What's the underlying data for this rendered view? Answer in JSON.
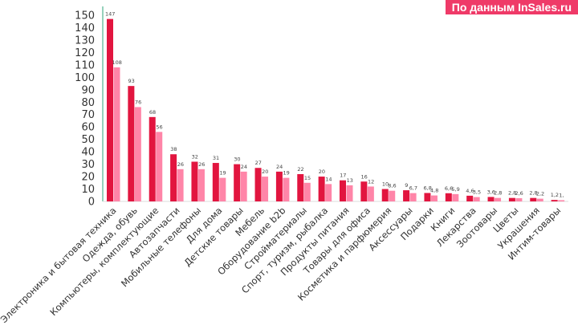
{
  "source_badge": "По данным InSales.ru",
  "colors": {
    "series1": "#e2153f",
    "series2": "#ff85a8",
    "badge": "#ef3a68",
    "axis": "#2ea37a"
  },
  "chart_data": {
    "type": "bar",
    "title": "",
    "xlabel": "",
    "ylabel": "",
    "ylim": [
      0,
      150
    ],
    "yticks": [
      0,
      10,
      20,
      30,
      40,
      50,
      60,
      70,
      80,
      90,
      100,
      110,
      120,
      130,
      140,
      150
    ],
    "grid": false,
    "categories": [
      "Электроника и бытовая техника",
      "Одежда, обувь",
      "Компьютеры, комплектующие",
      "Автозапчасти",
      "Мобильные телефоны",
      "Для дома",
      "Детские товары",
      "Мебель",
      "Оборудование b2b",
      "Стройматериалы",
      "Спорт, туризм, рыбалка",
      "Продукты питания",
      "Товары для офиса",
      "Косметика и парфюмерия",
      "Аксессуары",
      "Подарки",
      "Книги",
      "Лекарства",
      "Зоотовары",
      "Цветы",
      "Украшения",
      "Интим-товары"
    ],
    "series": [
      {
        "values": [
          147,
          93,
          68,
          38,
          32,
          31,
          30,
          27,
          24,
          22,
          20,
          17,
          16,
          10,
          9,
          6.8,
          6.6,
          4.6,
          3.6,
          2.8,
          2.8,
          1.2
        ],
        "labels": [
          "147",
          "93",
          "68",
          "38",
          "32",
          "31",
          "30",
          "27",
          "24",
          "22",
          "20",
          "17",
          "16",
          "10",
          "9",
          "6,8",
          "6,6",
          "4,6",
          "3,6",
          "2,8",
          "2,8",
          "1,2"
        ]
      },
      {
        "values": [
          108,
          76,
          56,
          26,
          26,
          19,
          24,
          20,
          19,
          15,
          14,
          13,
          12,
          8.6,
          6.7,
          4.8,
          5.9,
          3.5,
          2.8,
          2.6,
          2.2,
          1
        ],
        "labels": [
          "108",
          "76",
          "56",
          "26",
          "26",
          "19",
          "24",
          "20",
          "19",
          "15",
          "14",
          "13",
          "12",
          "8,6",
          "6,7",
          "4,8",
          "5,9",
          "3,5",
          "2,8",
          "2,6",
          "2,2",
          "1,"
        ]
      }
    ]
  }
}
